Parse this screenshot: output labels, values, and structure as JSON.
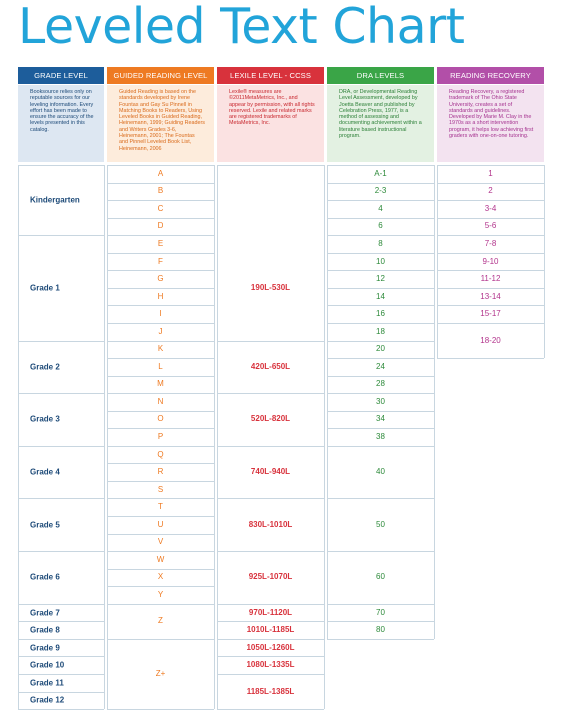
{
  "title": "Leveled Text Chart",
  "headers": {
    "grade": "GRADE LEVEL",
    "guided": "GUIDED READING LEVEL",
    "lexile": "LEXILE LEVEL - CCSS",
    "dra": "DRA LEVELS",
    "rr": "READING RECOVERY"
  },
  "colors": {
    "grade": "#1d5d9b",
    "guided": "#ee7a22",
    "lexile": "#d8323c",
    "dra": "#3aa547",
    "rr": "#b24fa8"
  },
  "descriptions": {
    "grade": "Booksource relies only on reputable sources for our leveling information. Every effort has been made to ensure the accuracy of the levels presented in this catalog.",
    "guided": "Guided Reading is based on the standards developed by Irene Fountas and Gay Su Pinnell in Matching Books to Readers, Using Leveled Books in Guided Reading, Heinemann, 1999; Guiding Readers and Writers Grades 3-6, Heinemann, 2001; The Fountas and Pinnell Leveled Book List, Heinemann, 2006",
    "lexile": "Lexile® measures are ©2011MetaMetrics, Inc., and appear by permission, with all rights reserved. Lexile and related marks are registered trademarks of MetaMetrics, Inc.",
    "dra": "DRA, or Developmental Reading Level Assessment, developed by Joetta Beaver and published by Celebration Press, 1977, is a method of assessing and documenting achievement within a literature based instructional program.",
    "rr": "Reading Recovery, a registered trademark of The Ohio State University, creates a set of standards and guidelines. Developed by Marie M. Clay in the 1970s as a short intervention program, it helps low achieving first graders with one-on-one tutoring."
  },
  "grades": [
    "Kindergarten",
    "Grade 1",
    "Grade 2",
    "Grade 3",
    "Grade 4",
    "Grade 5",
    "Grade 6",
    "Grade 7",
    "Grade 8",
    "Grade 9",
    "Grade 10",
    "Grade 11",
    "Grade 12"
  ],
  "guided": [
    "A",
    "B",
    "C",
    "D",
    "E",
    "F",
    "G",
    "H",
    "I",
    "J",
    "K",
    "L",
    "M",
    "N",
    "O",
    "P",
    "Q",
    "R",
    "S",
    "T",
    "U",
    "V",
    "W",
    "X",
    "Y",
    "Z",
    "Z+"
  ],
  "lexile": [
    "190L-530L",
    "420L-650L",
    "520L-820L",
    "740L-940L",
    "830L-1010L",
    "925L-1070L",
    "970L-1120L",
    "1010L-1185L",
    "1050L-1260L",
    "1080L-1335L",
    "1185L-1385L"
  ],
  "dra": [
    "A-1",
    "2-3",
    "4",
    "6",
    "8",
    "10",
    "12",
    "14",
    "16",
    "18",
    "20",
    "24",
    "28",
    "30",
    "34",
    "38",
    "40",
    "50",
    "60",
    "70",
    "80"
  ],
  "rr": [
    "1",
    "2",
    "3-4",
    "5-6",
    "7-8",
    "9-10",
    "11-12",
    "13-14",
    "15-17",
    "18-20"
  ]
}
